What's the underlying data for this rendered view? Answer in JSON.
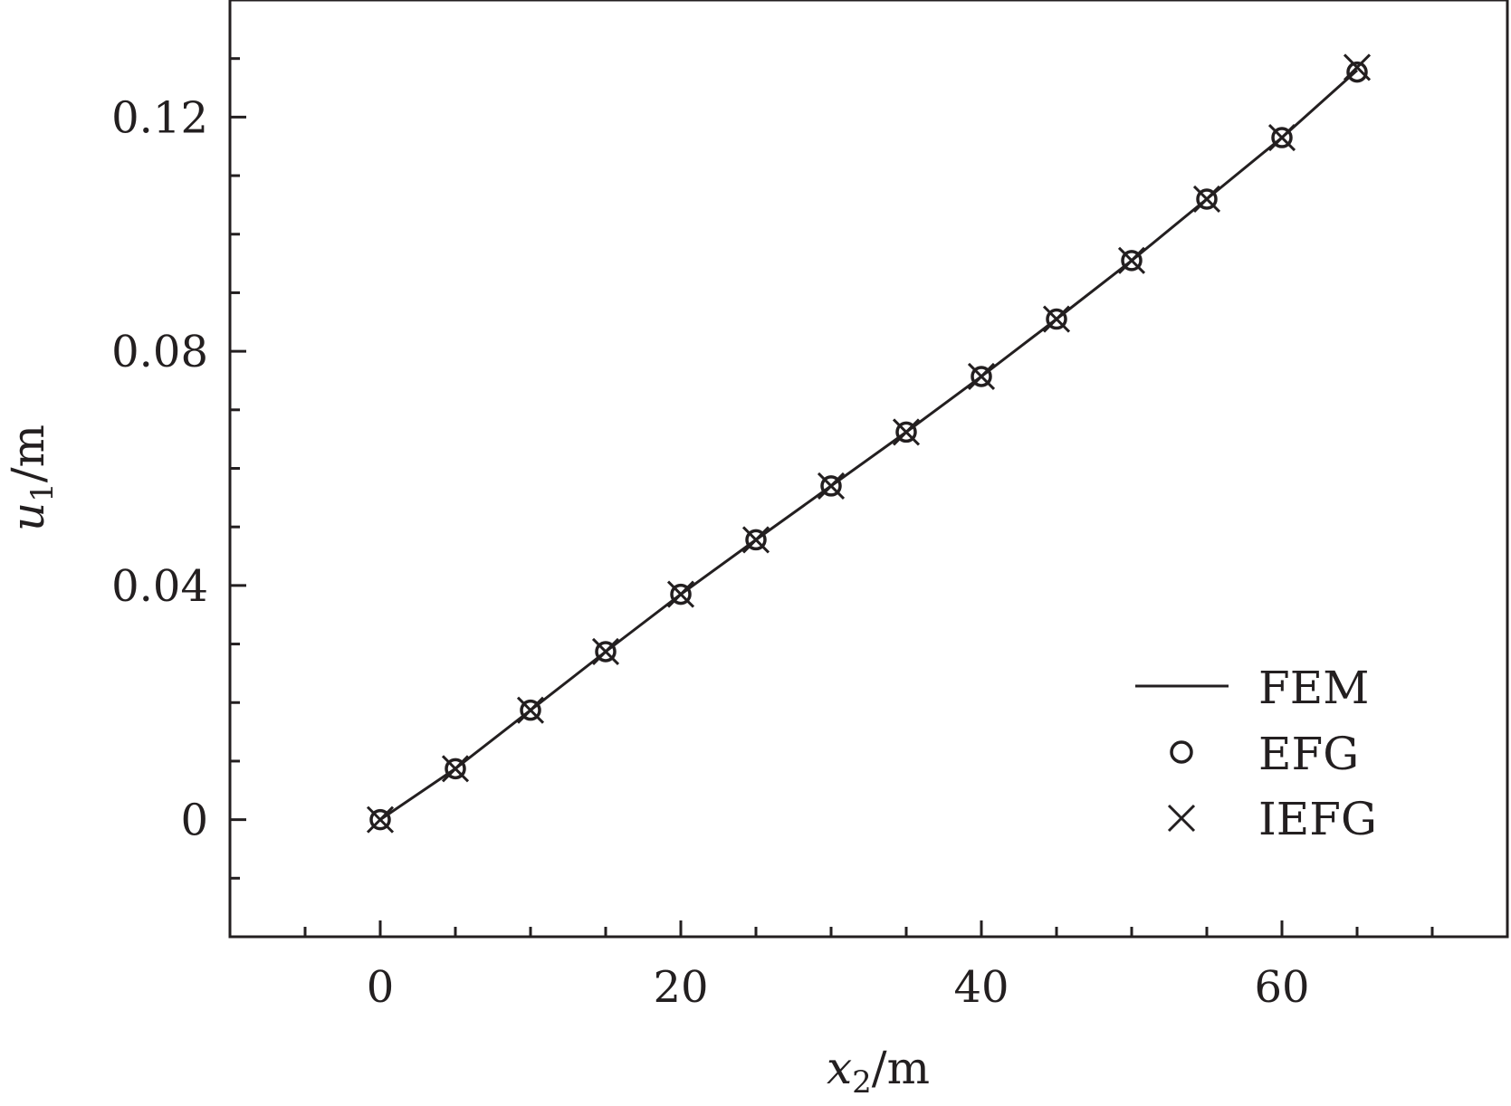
{
  "chart_data": {
    "type": "line",
    "xlabel": {
      "var": "x",
      "sub": "2",
      "unit": "/m"
    },
    "ylabel": {
      "var": "u",
      "sub": "1",
      "unit": "/m"
    },
    "xlim": [
      -10,
      75
    ],
    "ylim": [
      -0.02,
      0.14
    ],
    "x_ticks_major": [
      0,
      20,
      40,
      60
    ],
    "x_ticks_minor": [
      -5,
      5,
      10,
      15,
      25,
      30,
      35,
      45,
      50,
      55,
      65,
      70
    ],
    "x_tick_labels": [
      "0",
      "20",
      "40",
      "60"
    ],
    "y_ticks_major": [
      0,
      0.04,
      0.08,
      0.12
    ],
    "y_ticks_minor": [
      -0.01,
      0.01,
      0.02,
      0.03,
      0.05,
      0.06,
      0.07,
      0.09,
      0.1,
      0.11,
      0.13
    ],
    "y_tick_labels": [
      "0",
      "0.04",
      "0.08",
      "0.12"
    ],
    "grid": false,
    "legend_position": "bottom-right",
    "series": [
      {
        "name": "FEM",
        "style": "line",
        "x": [
          0,
          5,
          10,
          15,
          20,
          25,
          30,
          35,
          40,
          45,
          50,
          55,
          60,
          65
        ],
        "y": [
          0,
          0.0087,
          0.0187,
          0.0287,
          0.0385,
          0.0478,
          0.057,
          0.0662,
          0.0757,
          0.0855,
          0.0955,
          0.106,
          0.1165,
          0.128
        ]
      },
      {
        "name": "EFG",
        "style": "circle",
        "x": [
          0,
          5,
          10,
          15,
          20,
          25,
          30,
          35,
          40,
          45,
          50,
          55,
          60,
          65
        ],
        "y": [
          0,
          0.0087,
          0.0187,
          0.0287,
          0.0385,
          0.0478,
          0.057,
          0.0662,
          0.0757,
          0.0855,
          0.0955,
          0.106,
          0.1165,
          0.1277
        ]
      },
      {
        "name": "IEFG",
        "style": "cross",
        "x": [
          0,
          5,
          10,
          15,
          20,
          25,
          30,
          35,
          40,
          45,
          50,
          55,
          60,
          65
        ],
        "y": [
          0,
          0.0087,
          0.0187,
          0.0287,
          0.0385,
          0.0478,
          0.057,
          0.0662,
          0.0757,
          0.0855,
          0.0955,
          0.106,
          0.1165,
          0.1285
        ]
      }
    ]
  }
}
